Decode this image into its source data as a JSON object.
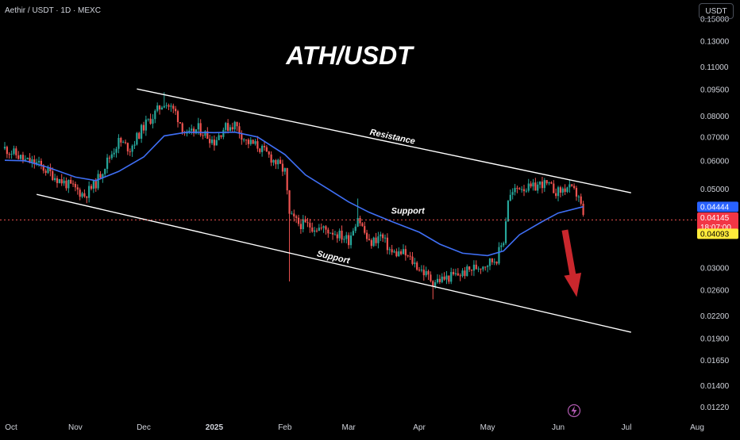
{
  "header": {
    "ticker": "Aethir / USDT · 1D · MEXC",
    "quote_currency": "USDT"
  },
  "chart_data": {
    "type": "candlestick",
    "title": "ATH/USDT",
    "x_axis": {
      "tick_labels": [
        "Oct",
        "Nov",
        "Dec",
        "2025",
        "Feb",
        "Mar",
        "Apr",
        "May",
        "Jun",
        "Jul",
        "Aug"
      ],
      "range": [
        "2024-10-01",
        "2025-08-01"
      ]
    },
    "y_axis": {
      "scale": "log",
      "tick_labels": [
        "0.15000",
        "0.13000",
        "0.11000",
        "0.09500",
        "0.08000",
        "0.07000",
        "0.06000",
        "0.05000",
        "0.03000",
        "0.02600",
        "0.02200",
        "0.01900",
        "0.01650",
        "0.01400",
        "0.01220"
      ],
      "range": [
        0.0118,
        0.158
      ]
    },
    "price_labels": {
      "moving_average": "0.04444",
      "last_price": "0.04145",
      "countdown": "18:07:00",
      "support_level": "0.04093"
    },
    "support_level": 0.04093,
    "annotations": {
      "resistance": "Resistance",
      "support_upper": "Support",
      "support_lower": "Support"
    },
    "channel_lines": [
      {
        "name": "resistance",
        "start": [
          "2024-11-28",
          0.0955
        ],
        "end": [
          "2025-07-03",
          0.0488
        ]
      },
      {
        "name": "support",
        "start": [
          "2024-10-15",
          0.0483
        ],
        "end": [
          "2025-07-03",
          0.0198
        ]
      }
    ],
    "moving_average_points": [
      [
        "2024-10-01",
        0.0602
      ],
      [
        "2024-10-10",
        0.06
      ],
      [
        "2024-10-20",
        0.0575
      ],
      [
        "2024-11-01",
        0.054
      ],
      [
        "2024-11-10",
        0.0528
      ],
      [
        "2024-11-20",
        0.056
      ],
      [
        "2024-12-01",
        0.0615
      ],
      [
        "2024-12-10",
        0.0705
      ],
      [
        "2024-12-20",
        0.0722
      ],
      [
        "2025-01-01",
        0.072
      ],
      [
        "2025-01-10",
        0.0722
      ],
      [
        "2025-01-20",
        0.07
      ],
      [
        "2025-02-01",
        0.0625
      ],
      [
        "2025-02-10",
        0.0548
      ],
      [
        "2025-02-20",
        0.05
      ],
      [
        "2025-03-01",
        0.046
      ],
      [
        "2025-03-10",
        0.043
      ],
      [
        "2025-03-20",
        0.0405
      ],
      [
        "2025-04-01",
        0.0378
      ],
      [
        "2025-04-10",
        0.035
      ],
      [
        "2025-04-20",
        0.033
      ],
      [
        "2025-05-01",
        0.0325
      ],
      [
        "2025-05-08",
        0.0335
      ],
      [
        "2025-05-15",
        0.0372
      ],
      [
        "2025-05-25",
        0.0405
      ],
      [
        "2025-06-01",
        0.0428
      ],
      [
        "2025-06-12",
        0.0446
      ]
    ],
    "price_path": [
      [
        "2024-10-01",
        0.065
      ],
      [
        "2024-10-05",
        0.063
      ],
      [
        "2024-10-10",
        0.06
      ],
      [
        "2024-10-15",
        0.059
      ],
      [
        "2024-10-20",
        0.056
      ],
      [
        "2024-10-25",
        0.053
      ],
      [
        "2024-11-01",
        0.05
      ],
      [
        "2024-11-05",
        0.048
      ],
      [
        "2024-11-10",
        0.052
      ],
      [
        "2024-11-15",
        0.06
      ],
      [
        "2024-11-20",
        0.068
      ],
      [
        "2024-11-25",
        0.065
      ],
      [
        "2024-12-01",
        0.075
      ],
      [
        "2024-12-05",
        0.08
      ],
      [
        "2024-12-10",
        0.088
      ],
      [
        "2024-12-15",
        0.082
      ],
      [
        "2024-12-20",
        0.07
      ],
      [
        "2024-12-25",
        0.074
      ],
      [
        "2025-01-01",
        0.068
      ],
      [
        "2025-01-05",
        0.074
      ],
      [
        "2025-01-10",
        0.076
      ],
      [
        "2025-01-15",
        0.068
      ],
      [
        "2025-01-20",
        0.066
      ],
      [
        "2025-01-25",
        0.062
      ],
      [
        "2025-02-01",
        0.056
      ],
      [
        "2025-02-03",
        0.042
      ],
      [
        "2025-02-07",
        0.04
      ],
      [
        "2025-02-15",
        0.039
      ],
      [
        "2025-02-22",
        0.038
      ],
      [
        "2025-03-01",
        0.036
      ],
      [
        "2025-03-05",
        0.042
      ],
      [
        "2025-03-10",
        0.035
      ],
      [
        "2025-03-15",
        0.037
      ],
      [
        "2025-03-20",
        0.033
      ],
      [
        "2025-03-25",
        0.033
      ],
      [
        "2025-04-01",
        0.03
      ],
      [
        "2025-04-07",
        0.0275
      ],
      [
        "2025-04-12",
        0.028
      ],
      [
        "2025-04-20",
        0.029
      ],
      [
        "2025-04-25",
        0.03
      ],
      [
        "2025-05-01",
        0.031
      ],
      [
        "2025-05-05",
        0.032
      ],
      [
        "2025-05-08",
        0.036
      ],
      [
        "2025-05-10",
        0.047
      ],
      [
        "2025-05-15",
        0.051
      ],
      [
        "2025-05-20",
        0.05
      ],
      [
        "2025-05-25",
        0.052
      ],
      [
        "2025-06-01",
        0.049
      ],
      [
        "2025-06-05",
        0.0505
      ],
      [
        "2025-06-10",
        0.048
      ],
      [
        "2025-06-12",
        0.0415
      ]
    ],
    "colors": {
      "up": "#26a69a",
      "down": "#ef5350",
      "moving_average": "#3f6ff5",
      "channel": "#ffffff",
      "support_line": "#ef5350",
      "ma_badge": "#2962ff",
      "last_badge": "#f23645",
      "support_badge": "#ffeb3b",
      "arrow": "#c9272d"
    }
  }
}
